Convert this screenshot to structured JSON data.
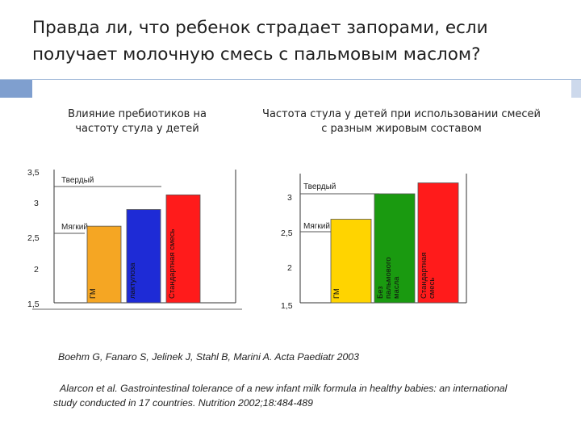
{
  "slide": {
    "title": "Правда ли, что ребенок страдает запорами, если получает молочную смесь с пальмовым маслом?",
    "ref1": "Boehm G, Fanaro S, Jelinek J, Stahl B, Marini A. Acta Paediatr 2003",
    "ref2": "Alarcon et al. Gastrointestinal tolerance of a new infant milk formula in healthy babies: an international study conducted in 17 countries. Nutrition 2002;18:484-489"
  },
  "colors": {
    "gm": "#f5a623",
    "blue": "#1e2bd6",
    "red": "#ff1b1b",
    "yellow": "#ffd400",
    "green": "#1a9a10"
  },
  "chart_data": [
    {
      "type": "bar",
      "title": "Влияние пребиотиков на частоту стула у детей",
      "ylim": [
        1.5,
        3.5
      ],
      "yticks": [
        "3,5",
        "3",
        "2,5",
        "2",
        "1,5"
      ],
      "annotations": [
        "Твердый",
        "Мягкий"
      ],
      "categories": [
        "ГМ",
        "лактулоза",
        "Стандартная смесь"
      ],
      "values": [
        2.65,
        2.9,
        3.12
      ],
      "colors": [
        "#f5a623",
        "#1e2bd6",
        "#ff1b1b"
      ]
    },
    {
      "type": "bar",
      "title": "Частота стула у детей при использовании смесей с разным жировым составом",
      "ylim": [
        1.5,
        3.0
      ],
      "yticks": [
        "3",
        "2,5",
        "2",
        "1,5"
      ],
      "annotations": [
        "Твердый",
        "Мягкий"
      ],
      "categories": [
        "ГМ",
        "Без пальмового масла",
        "Стандартная смесь"
      ],
      "values": [
        2.65,
        3.0,
        3.15
      ],
      "colors": [
        "#ffd400",
        "#1a9a10",
        "#ff1b1b"
      ]
    }
  ]
}
